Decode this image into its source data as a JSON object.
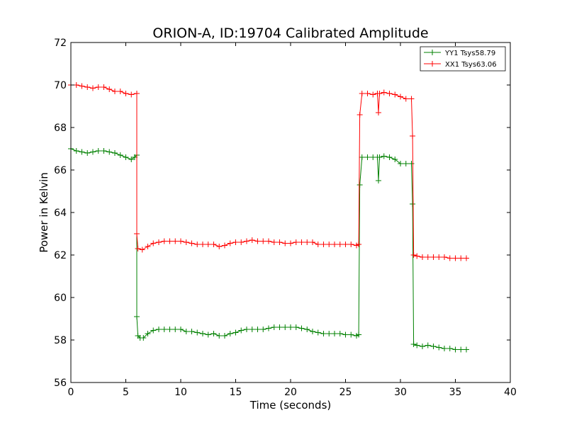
{
  "chart_data": {
    "type": "line",
    "title": "ORION-A, ID:19704 Calibrated Amplitude",
    "xlabel": "Time (seconds)",
    "ylabel": "Power in Kelvin",
    "xlim": [
      0,
      40
    ],
    "ylim": [
      56,
      72
    ],
    "xticks": [
      "0",
      "5",
      "10",
      "15",
      "20",
      "25",
      "30",
      "35",
      "40"
    ],
    "yticks": [
      "56",
      "58",
      "60",
      "62",
      "64",
      "66",
      "68",
      "70",
      "72"
    ],
    "grid": false,
    "legend_position": "top-right",
    "marker": "+",
    "series": [
      {
        "name": "YY1 Tsys58.79",
        "color": "#008000",
        "points": [
          [
            0.0,
            67.0
          ],
          [
            0.5,
            66.9
          ],
          [
            1.0,
            66.85
          ],
          [
            1.5,
            66.8
          ],
          [
            2.0,
            66.85
          ],
          [
            2.5,
            66.9
          ],
          [
            3.0,
            66.9
          ],
          [
            3.5,
            66.85
          ],
          [
            4.0,
            66.8
          ],
          [
            4.5,
            66.7
          ],
          [
            5.0,
            66.6
          ],
          [
            5.5,
            66.5
          ],
          [
            5.8,
            66.6
          ],
          [
            6.0,
            66.7
          ],
          [
            6.0,
            59.1
          ],
          [
            6.1,
            58.2
          ],
          [
            6.3,
            58.1
          ],
          [
            6.6,
            58.1
          ],
          [
            7.0,
            58.3
          ],
          [
            7.5,
            58.45
          ],
          [
            8.0,
            58.5
          ],
          [
            8.5,
            58.5
          ],
          [
            9.0,
            58.5
          ],
          [
            9.5,
            58.5
          ],
          [
            10.0,
            58.5
          ],
          [
            10.5,
            58.4
          ],
          [
            11.0,
            58.4
          ],
          [
            11.5,
            58.35
          ],
          [
            12.0,
            58.3
          ],
          [
            12.5,
            58.25
          ],
          [
            13.0,
            58.3
          ],
          [
            13.5,
            58.2
          ],
          [
            14.0,
            58.2
          ],
          [
            14.5,
            58.3
          ],
          [
            15.0,
            58.35
          ],
          [
            15.5,
            58.45
          ],
          [
            16.0,
            58.5
          ],
          [
            16.5,
            58.5
          ],
          [
            17.0,
            58.5
          ],
          [
            17.5,
            58.5
          ],
          [
            18.0,
            58.55
          ],
          [
            18.5,
            58.6
          ],
          [
            19.0,
            58.6
          ],
          [
            19.5,
            58.6
          ],
          [
            20.0,
            58.6
          ],
          [
            20.5,
            58.6
          ],
          [
            21.0,
            58.55
          ],
          [
            21.5,
            58.5
          ],
          [
            22.0,
            58.4
          ],
          [
            22.5,
            58.35
          ],
          [
            23.0,
            58.3
          ],
          [
            23.5,
            58.3
          ],
          [
            24.0,
            58.3
          ],
          [
            24.5,
            58.3
          ],
          [
            25.0,
            58.25
          ],
          [
            25.5,
            58.25
          ],
          [
            26.0,
            58.2
          ],
          [
            26.2,
            58.25
          ],
          [
            26.3,
            65.3
          ],
          [
            26.5,
            66.6
          ],
          [
            27.0,
            66.6
          ],
          [
            27.5,
            66.6
          ],
          [
            27.9,
            66.6
          ],
          [
            28.0,
            65.5
          ],
          [
            28.1,
            66.6
          ],
          [
            28.5,
            66.65
          ],
          [
            29.0,
            66.6
          ],
          [
            29.5,
            66.5
          ],
          [
            30.0,
            66.3
          ],
          [
            30.5,
            66.3
          ],
          [
            31.0,
            66.3
          ],
          [
            31.1,
            64.4
          ],
          [
            31.2,
            57.8
          ],
          [
            31.5,
            57.75
          ],
          [
            32.0,
            57.7
          ],
          [
            32.5,
            57.75
          ],
          [
            33.0,
            57.7
          ],
          [
            33.5,
            57.65
          ],
          [
            34.0,
            57.6
          ],
          [
            34.5,
            57.6
          ],
          [
            35.0,
            57.55
          ],
          [
            35.5,
            57.55
          ],
          [
            36.0,
            57.55
          ]
        ]
      },
      {
        "name": "XX1 Tsys63.06",
        "color": "#ff0000",
        "points": [
          [
            0.0,
            70.0
          ],
          [
            0.5,
            70.0
          ],
          [
            1.0,
            69.95
          ],
          [
            1.5,
            69.9
          ],
          [
            2.0,
            69.85
          ],
          [
            2.5,
            69.9
          ],
          [
            3.0,
            69.9
          ],
          [
            3.5,
            69.8
          ],
          [
            4.0,
            69.7
          ],
          [
            4.5,
            69.7
          ],
          [
            5.0,
            69.6
          ],
          [
            5.5,
            69.55
          ],
          [
            6.0,
            69.6
          ],
          [
            6.0,
            63.0
          ],
          [
            6.1,
            62.3
          ],
          [
            6.5,
            62.25
          ],
          [
            7.0,
            62.4
          ],
          [
            7.5,
            62.55
          ],
          [
            8.0,
            62.6
          ],
          [
            8.5,
            62.65
          ],
          [
            9.0,
            62.65
          ],
          [
            9.5,
            62.65
          ],
          [
            10.0,
            62.65
          ],
          [
            10.5,
            62.6
          ],
          [
            11.0,
            62.55
          ],
          [
            11.5,
            62.5
          ],
          [
            12.0,
            62.5
          ],
          [
            12.5,
            62.5
          ],
          [
            13.0,
            62.5
          ],
          [
            13.5,
            62.4
          ],
          [
            14.0,
            62.45
          ],
          [
            14.5,
            62.55
          ],
          [
            15.0,
            62.6
          ],
          [
            15.5,
            62.6
          ],
          [
            16.0,
            62.65
          ],
          [
            16.5,
            62.7
          ],
          [
            17.0,
            62.65
          ],
          [
            17.5,
            62.65
          ],
          [
            18.0,
            62.65
          ],
          [
            18.5,
            62.6
          ],
          [
            19.0,
            62.6
          ],
          [
            19.5,
            62.55
          ],
          [
            20.0,
            62.55
          ],
          [
            20.5,
            62.6
          ],
          [
            21.0,
            62.6
          ],
          [
            21.5,
            62.6
          ],
          [
            22.0,
            62.6
          ],
          [
            22.5,
            62.5
          ],
          [
            23.0,
            62.5
          ],
          [
            23.5,
            62.5
          ],
          [
            24.0,
            62.5
          ],
          [
            24.5,
            62.5
          ],
          [
            25.0,
            62.5
          ],
          [
            25.5,
            62.5
          ],
          [
            26.0,
            62.45
          ],
          [
            26.2,
            62.5
          ],
          [
            26.3,
            68.6
          ],
          [
            26.5,
            69.6
          ],
          [
            27.0,
            69.6
          ],
          [
            27.5,
            69.55
          ],
          [
            27.9,
            69.6
          ],
          [
            28.0,
            68.7
          ],
          [
            28.1,
            69.6
          ],
          [
            28.5,
            69.65
          ],
          [
            29.0,
            69.6
          ],
          [
            29.5,
            69.55
          ],
          [
            30.0,
            69.45
          ],
          [
            30.5,
            69.35
          ],
          [
            31.0,
            69.35
          ],
          [
            31.1,
            67.6
          ],
          [
            31.2,
            62.0
          ],
          [
            31.5,
            61.95
          ],
          [
            32.0,
            61.9
          ],
          [
            32.5,
            61.9
          ],
          [
            33.0,
            61.9
          ],
          [
            33.5,
            61.9
          ],
          [
            34.0,
            61.9
          ],
          [
            34.5,
            61.85
          ],
          [
            35.0,
            61.85
          ],
          [
            35.5,
            61.85
          ],
          [
            36.0,
            61.85
          ]
        ]
      }
    ]
  }
}
